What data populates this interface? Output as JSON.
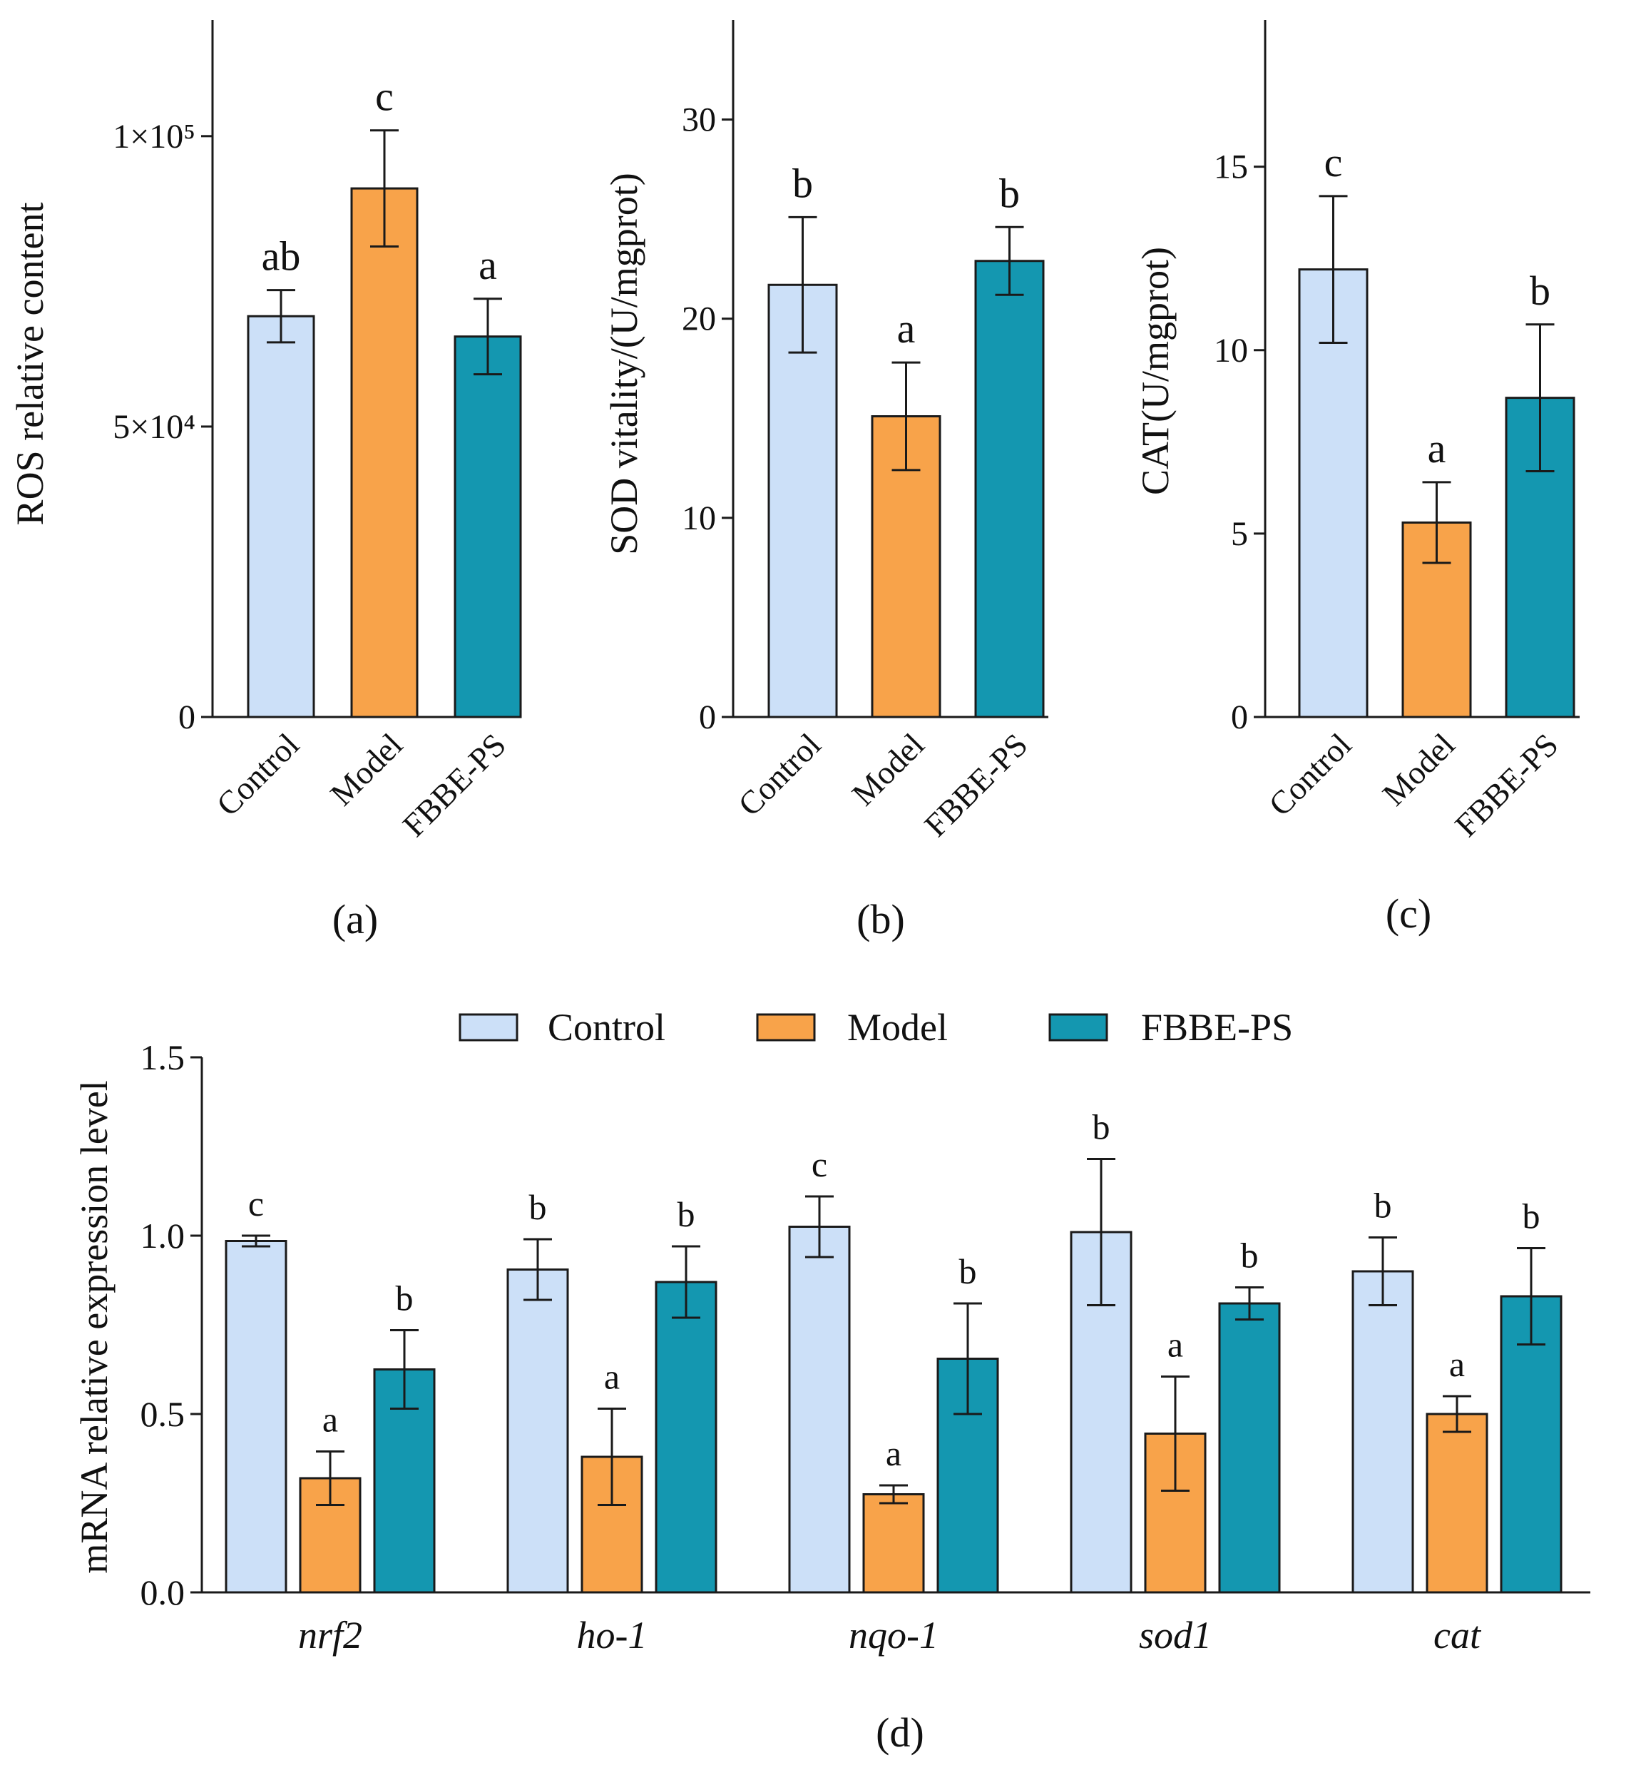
{
  "colors": {
    "Control": "#cce0f8",
    "Model": "#f8a34a",
    "FBBE-PS": "#1497b0"
  },
  "legend": {
    "entries": [
      "Control",
      "Model",
      "FBBE-PS"
    ]
  },
  "chart_data": [
    {
      "panel": "(a)",
      "type": "bar",
      "ylabel": "ROS relative content",
      "ylim": [
        0,
        120000
      ],
      "y_ticks": [
        0,
        50000,
        100000
      ],
      "y_tick_labels": [
        "0",
        "5×10⁴",
        "1×10⁵"
      ],
      "categories": [
        "Control",
        "Model",
        "FBBE-PS"
      ],
      "values": [
        69000,
        91000,
        65500
      ],
      "errors": [
        4500,
        10000,
        6500
      ],
      "significance": [
        "ab",
        "c",
        "a"
      ]
    },
    {
      "panel": "(b)",
      "type": "bar",
      "ylabel": "SOD vitality/(U/mgprot)",
      "ylim": [
        0,
        35
      ],
      "y_ticks": [
        0,
        10,
        20,
        30
      ],
      "y_tick_labels": [
        "0",
        "10",
        "20",
        "30"
      ],
      "categories": [
        "Control",
        "Model",
        "FBBE-PS"
      ],
      "values": [
        21.7,
        15.1,
        22.9
      ],
      "errors": [
        3.4,
        2.7,
        1.7
      ],
      "significance": [
        "b",
        "a",
        "b"
      ]
    },
    {
      "panel": "(c)",
      "type": "bar",
      "ylabel": "CAT(U/mgprot)",
      "ylim": [
        0,
        19
      ],
      "y_ticks": [
        0,
        5,
        10,
        15
      ],
      "y_tick_labels": [
        "0",
        "5",
        "10",
        "15"
      ],
      "categories": [
        "Control",
        "Model",
        "FBBE-PS"
      ],
      "values": [
        12.2,
        5.3,
        8.7
      ],
      "errors": [
        2.0,
        1.1,
        2.0
      ],
      "significance": [
        "c",
        "a",
        "b"
      ]
    },
    {
      "panel": "(d)",
      "type": "bar",
      "ylabel": "mRNA relative expression level",
      "ylim": [
        0,
        1.5
      ],
      "y_ticks": [
        0,
        0.5,
        1.0,
        1.5
      ],
      "y_tick_labels": [
        "0.0",
        "0.5",
        "1.0",
        "1.5"
      ],
      "categories": [
        "nrf2",
        "ho-1",
        "nqo-1",
        "sod1",
        "cat"
      ],
      "series": [
        {
          "name": "Control",
          "values": [
            0.985,
            0.905,
            1.025,
            1.01,
            0.9
          ],
          "errors": [
            0.015,
            0.085,
            0.085,
            0.205,
            0.095
          ],
          "significance": [
            "c",
            "b",
            "c",
            "b",
            "b"
          ]
        },
        {
          "name": "Model",
          "values": [
            0.32,
            0.38,
            0.275,
            0.445,
            0.5
          ],
          "errors": [
            0.075,
            0.135,
            0.025,
            0.16,
            0.05
          ],
          "significance": [
            "a",
            "a",
            "a",
            "a",
            "a"
          ]
        },
        {
          "name": "FBBE-PS",
          "values": [
            0.625,
            0.87,
            0.655,
            0.81,
            0.83
          ],
          "errors": [
            0.11,
            0.1,
            0.155,
            0.045,
            0.135
          ],
          "significance": [
            "b",
            "b",
            "b",
            "b",
            "b"
          ]
        }
      ]
    }
  ]
}
